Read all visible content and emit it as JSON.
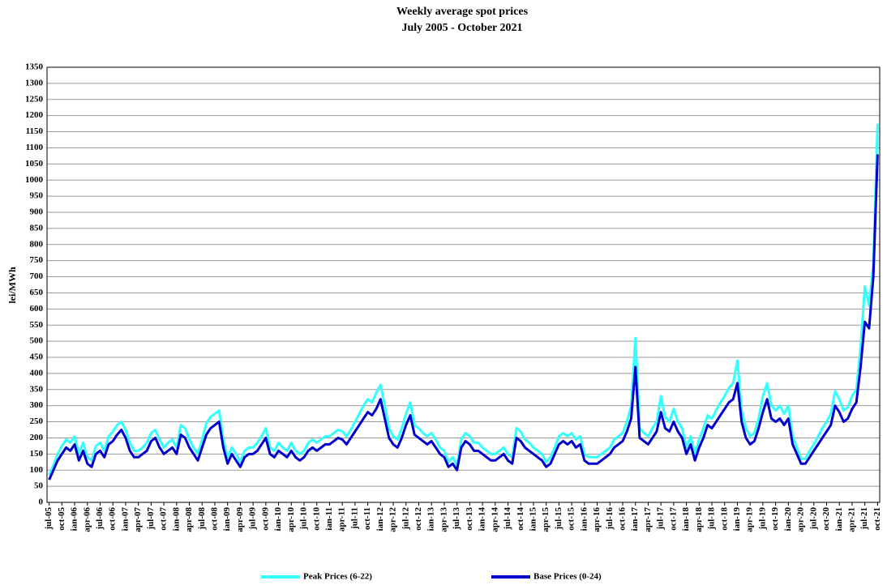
{
  "chart_data": {
    "type": "line",
    "title": "Weekly average spot prices",
    "subtitle": "July 2005 -  October 2021",
    "y_label": "lei/MWh",
    "categories": [
      "jul-05",
      null,
      null,
      "oct-05",
      null,
      null,
      "ian-06",
      null,
      null,
      "apr-06",
      null,
      null,
      "jul-06",
      null,
      null,
      "oct-06",
      null,
      null,
      "ian-07",
      null,
      null,
      "apr-07",
      null,
      null,
      "jul-07",
      null,
      null,
      "oct-07",
      null,
      null,
      "ian-08",
      null,
      null,
      "apr-08",
      null,
      null,
      "jul-08",
      null,
      null,
      "oct-08",
      null,
      null,
      "ian-09",
      null,
      null,
      "apr-09",
      null,
      null,
      "jul-09",
      null,
      null,
      "oct-09",
      null,
      null,
      "ian-10",
      null,
      null,
      "apr-10",
      null,
      null,
      "jul-10",
      null,
      null,
      "oct-10",
      null,
      null,
      "ian-11",
      null,
      null,
      "apr-11",
      null,
      null,
      "jul-11",
      null,
      null,
      "oct-11",
      null,
      null,
      "ian-12",
      null,
      null,
      "apr-12",
      null,
      null,
      "jul-12",
      null,
      null,
      "oct-12",
      null,
      null,
      "ian-13",
      null,
      null,
      "apr-13",
      null,
      null,
      "jul-13",
      null,
      null,
      "oct-13",
      null,
      null,
      "ian-14",
      null,
      null,
      "apr-14",
      null,
      null,
      "jul-14",
      null,
      null,
      "oct-14",
      null,
      null,
      "ian-15",
      null,
      null,
      "apr-15",
      null,
      null,
      "jul-15",
      null,
      null,
      "oct-15",
      null,
      null,
      "ian-16",
      null,
      null,
      "apr-16",
      null,
      null,
      "jul-16",
      null,
      null,
      "oct-16",
      null,
      null,
      "ian-17",
      null,
      null,
      "apr-17",
      null,
      null,
      "jul-17",
      null,
      null,
      "oct-17",
      null,
      null,
      "ian-18",
      null,
      null,
      "apr-18",
      null,
      null,
      "jul-18",
      null,
      null,
      "oct-18",
      null,
      null,
      "ian-19",
      null,
      null,
      "apr-19",
      null,
      null,
      "jul-19",
      null,
      null,
      "oct-19",
      null,
      null,
      "ian-20",
      null,
      null,
      "apr-20",
      null,
      null,
      "jul-20",
      null,
      null,
      "oct-20",
      null,
      null,
      "ian-21",
      null,
      null,
      "apr-21",
      null,
      null,
      "jul-21",
      null,
      null,
      "oct-21"
    ],
    "series": [
      {
        "name": "Peak Prices (6-22)",
        "color": "#33ffff",
        "values": [
          85,
          115,
          150,
          175,
          195,
          185,
          205,
          150,
          185,
          140,
          130,
          175,
          185,
          160,
          205,
          220,
          240,
          250,
          225,
          185,
          160,
          160,
          170,
          185,
          215,
          225,
          195,
          170,
          185,
          195,
          170,
          240,
          230,
          195,
          170,
          150,
          195,
          245,
          265,
          275,
          285,
          195,
          140,
          170,
          150,
          125,
          160,
          170,
          170,
          185,
          205,
          230,
          170,
          160,
          185,
          170,
          160,
          185,
          160,
          150,
          160,
          185,
          195,
          185,
          195,
          205,
          205,
          215,
          225,
          220,
          205,
          225,
          250,
          275,
          300,
          320,
          310,
          340,
          365,
          300,
          230,
          205,
          195,
          230,
          275,
          310,
          240,
          230,
          215,
          205,
          215,
          195,
          170,
          160,
          125,
          140,
          115,
          195,
          215,
          205,
          185,
          185,
          170,
          160,
          150,
          150,
          160,
          170,
          150,
          140,
          230,
          220,
          195,
          185,
          170,
          160,
          150,
          125,
          140,
          170,
          205,
          215,
          205,
          215,
          195,
          205,
          150,
          140,
          140,
          140,
          150,
          160,
          170,
          195,
          205,
          215,
          250,
          300,
          510,
          230,
          215,
          205,
          230,
          250,
          330,
          265,
          250,
          290,
          250,
          230,
          170,
          205,
          150,
          195,
          230,
          270,
          260,
          285,
          310,
          330,
          355,
          370,
          440,
          285,
          230,
          205,
          215,
          260,
          330,
          370,
          300,
          285,
          300,
          275,
          300,
          205,
          170,
          135,
          135,
          160,
          180,
          205,
          230,
          250,
          275,
          345,
          320,
          285,
          295,
          330,
          350,
          480,
          670,
          610,
          740,
          1175
        ]
      },
      {
        "name": "Base Prices (0-24)",
        "color": "#0000cc",
        "values": [
          70,
          100,
          130,
          150,
          170,
          160,
          180,
          130,
          160,
          120,
          110,
          150,
          160,
          140,
          180,
          190,
          210,
          225,
          200,
          160,
          140,
          140,
          150,
          160,
          190,
          200,
          170,
          150,
          160,
          170,
          150,
          210,
          200,
          170,
          150,
          130,
          170,
          210,
          230,
          240,
          250,
          170,
          120,
          150,
          130,
          110,
          140,
          150,
          150,
          160,
          180,
          200,
          150,
          140,
          160,
          150,
          140,
          160,
          140,
          130,
          140,
          160,
          170,
          160,
          170,
          180,
          180,
          190,
          200,
          195,
          180,
          200,
          220,
          240,
          260,
          280,
          270,
          290,
          320,
          260,
          200,
          180,
          170,
          200,
          240,
          270,
          210,
          200,
          190,
          180,
          190,
          170,
          150,
          140,
          110,
          120,
          100,
          170,
          190,
          180,
          160,
          160,
          150,
          140,
          130,
          130,
          140,
          150,
          130,
          120,
          200,
          190,
          170,
          160,
          150,
          140,
          130,
          110,
          120,
          150,
          180,
          190,
          180,
          190,
          170,
          180,
          130,
          120,
          120,
          120,
          130,
          140,
          150,
          170,
          180,
          190,
          220,
          260,
          420,
          200,
          190,
          180,
          200,
          220,
          280,
          230,
          220,
          250,
          220,
          200,
          150,
          180,
          130,
          170,
          200,
          240,
          230,
          250,
          270,
          290,
          310,
          320,
          370,
          250,
          200,
          180,
          190,
          230,
          280,
          320,
          260,
          250,
          260,
          240,
          260,
          180,
          150,
          120,
          120,
          140,
          160,
          180,
          200,
          220,
          240,
          300,
          280,
          250,
          260,
          290,
          310,
          420,
          560,
          540,
          700,
          1080
        ]
      }
    ],
    "ylim": [
      0,
      1350
    ],
    "yticks": [
      0,
      50,
      100,
      150,
      200,
      250,
      300,
      350,
      400,
      450,
      500,
      550,
      600,
      650,
      700,
      750,
      800,
      850,
      900,
      950,
      1000,
      1050,
      1100,
      1150,
      1200,
      1250,
      1300,
      1350
    ],
    "grid": true,
    "legend": "bottom"
  }
}
